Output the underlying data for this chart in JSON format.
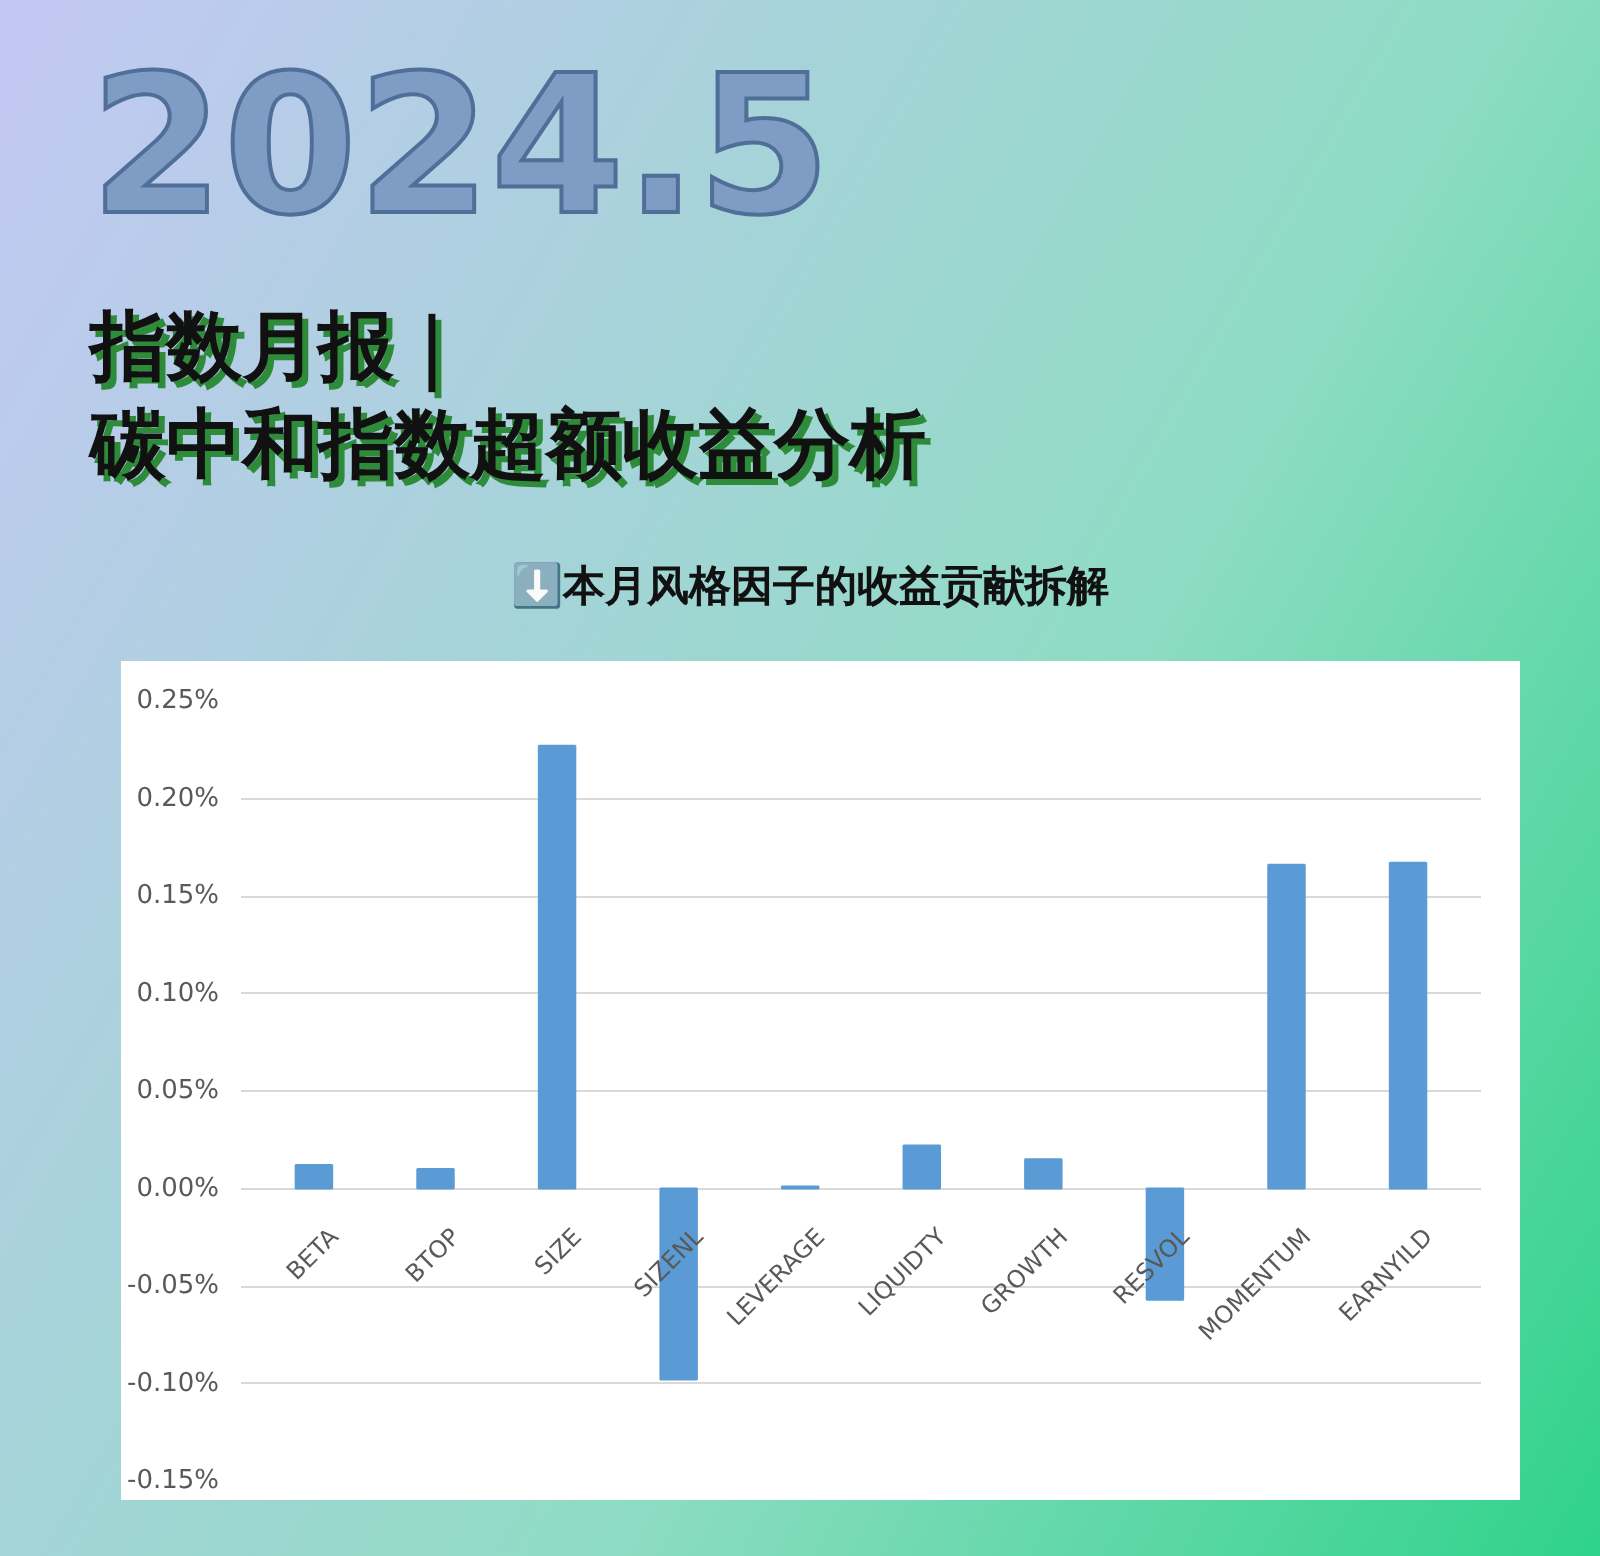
{
  "chart_data": {
    "type": "bar",
    "annotations": [
      "2024.5",
      "⬇️本月风格因子的收益贡献拆解"
    ],
    "title": "指数月报｜",
    "subtitle": "碳中和指数超额收益分析",
    "categories": [
      "BETA",
      "BTOP",
      "SIZE",
      "SIZENL",
      "LEVERAGE",
      "LIQUIDTY",
      "GROWTH",
      "RESVOL",
      "MOMENTUM",
      "EARNYILD"
    ],
    "values": [
      0.012,
      0.01,
      0.227,
      -0.098,
      0.001,
      0.022,
      0.015,
      -0.057,
      0.166,
      0.167
    ],
    "color": "#5b9bd5",
    "ylim": [
      -0.15,
      0.25
    ],
    "yticks": [
      {
        "value": -0.15,
        "label": "-0.15%"
      },
      {
        "value": -0.1,
        "label": "-0.10%"
      },
      {
        "value": -0.05,
        "label": "-0.05%"
      },
      {
        "value": 0,
        "label": "0.00%"
      },
      {
        "value": 0.05,
        "label": "0.05%"
      },
      {
        "value": 0.1,
        "label": "0.10%"
      },
      {
        "value": 0.15,
        "label": "0.15%"
      },
      {
        "value": 0.2,
        "label": "0.20%"
      },
      {
        "value": 0.25,
        "label": "0.25%"
      }
    ],
    "grid": "y"
  }
}
